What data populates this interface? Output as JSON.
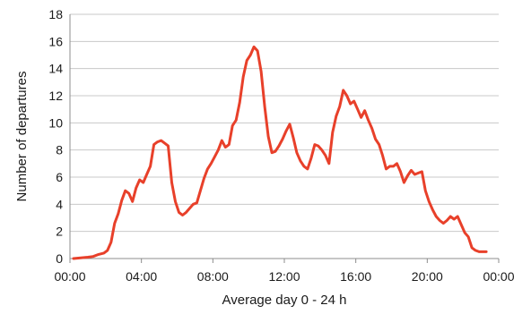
{
  "chart_data": {
    "type": "line",
    "title": "",
    "xlabel": "Average day 0 - 24 h",
    "ylabel": "Number of departures",
    "xlim": [
      0,
      24
    ],
    "ylim": [
      0,
      18
    ],
    "grid": true,
    "x_ticks": [
      {
        "value": 0,
        "label": "00:00"
      },
      {
        "value": 4,
        "label": "04:00"
      },
      {
        "value": 8,
        "label": "08:00"
      },
      {
        "value": 12,
        "label": "12:00"
      },
      {
        "value": 16,
        "label": "16:00"
      },
      {
        "value": 20,
        "label": "20:00"
      },
      {
        "value": 24,
        "label": "00:00"
      }
    ],
    "y_ticks": [
      {
        "value": 0,
        "label": "0"
      },
      {
        "value": 2,
        "label": "2"
      },
      {
        "value": 4,
        "label": "4"
      },
      {
        "value": 6,
        "label": "6"
      },
      {
        "value": 8,
        "label": "8"
      },
      {
        "value": 10,
        "label": "10"
      },
      {
        "value": 12,
        "label": "12"
      },
      {
        "value": 14,
        "label": "14"
      },
      {
        "value": 16,
        "label": "16"
      },
      {
        "value": 18,
        "label": "18"
      }
    ],
    "series": [
      {
        "color": "#e8402a",
        "x": [
          0.2,
          0.6,
          1.0,
          1.3,
          1.6,
          1.9,
          2.1,
          2.3,
          2.5,
          2.7,
          2.9,
          3.1,
          3.3,
          3.5,
          3.7,
          3.9,
          4.1,
          4.3,
          4.5,
          4.7,
          4.9,
          5.1,
          5.3,
          5.5,
          5.7,
          5.9,
          6.1,
          6.3,
          6.5,
          6.7,
          6.9,
          7.1,
          7.3,
          7.5,
          7.7,
          7.9,
          8.1,
          8.3,
          8.5,
          8.7,
          8.9,
          9.1,
          9.3,
          9.5,
          9.7,
          9.9,
          10.1,
          10.3,
          10.5,
          10.7,
          10.9,
          11.1,
          11.3,
          11.5,
          11.7,
          11.9,
          12.1,
          12.3,
          12.5,
          12.7,
          12.9,
          13.1,
          13.3,
          13.5,
          13.7,
          13.9,
          14.1,
          14.3,
          14.5,
          14.7,
          14.9,
          15.1,
          15.3,
          15.5,
          15.7,
          15.9,
          16.1,
          16.3,
          16.5,
          16.7,
          16.9,
          17.1,
          17.3,
          17.5,
          17.7,
          17.9,
          18.1,
          18.3,
          18.5,
          18.7,
          18.9,
          19.1,
          19.3,
          19.5,
          19.7,
          19.9,
          20.1,
          20.3,
          20.5,
          20.7,
          20.9,
          21.1,
          21.3,
          21.5,
          21.7,
          21.9,
          22.1,
          22.3,
          22.5,
          22.7,
          22.9,
          23.1,
          23.3
        ],
        "y": [
          0.0,
          0.05,
          0.1,
          0.15,
          0.3,
          0.4,
          0.6,
          1.2,
          2.6,
          3.3,
          4.3,
          5.0,
          4.8,
          4.2,
          5.2,
          5.8,
          5.6,
          6.2,
          6.8,
          8.4,
          8.6,
          8.7,
          8.5,
          8.3,
          5.6,
          4.2,
          3.4,
          3.2,
          3.4,
          3.7,
          4.0,
          4.1,
          5.0,
          5.9,
          6.6,
          7.0,
          7.5,
          8.0,
          8.7,
          8.2,
          8.4,
          9.8,
          10.2,
          11.5,
          13.4,
          14.6,
          15.0,
          15.6,
          15.3,
          13.8,
          11.2,
          9.0,
          7.8,
          7.9,
          8.3,
          8.8,
          9.4,
          9.9,
          8.9,
          7.8,
          7.2,
          6.8,
          6.6,
          7.4,
          8.4,
          8.3,
          8.0,
          7.6,
          7.0,
          9.3,
          10.5,
          11.2,
          12.4,
          12.0,
          11.4,
          11.6,
          11.0,
          10.4,
          10.9,
          10.2,
          9.6,
          8.8,
          8.4,
          7.6,
          6.6,
          6.8,
          6.8,
          7.0,
          6.4,
          5.6,
          6.1,
          6.5,
          6.2,
          6.3,
          6.4,
          5.0,
          4.2,
          3.6,
          3.1,
          2.8,
          2.6,
          2.8,
          3.1,
          2.9,
          3.1,
          2.5,
          1.9,
          1.6,
          0.8,
          0.6,
          0.5,
          0.5,
          0.5
        ]
      }
    ]
  }
}
